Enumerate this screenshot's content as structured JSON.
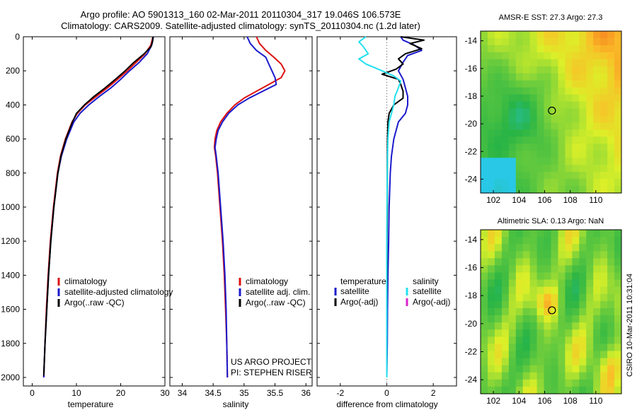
{
  "header": {
    "line1": "Argo profile: AO 5901313_160 02-Mar-2011 20110304_317 19.046S 106.573E",
    "line2": "Climatology: CARS2009. Satellite-adjusted climatology: synTS_20110304.nc (1.2d later)"
  },
  "colors": {
    "climatology": "#dd1111",
    "satellite": "#1a1acc",
    "argo": "#000000",
    "salinity_satellite": "#22e0ee",
    "salinity_argo": "#dd22cc",
    "zero_line": "#555555"
  },
  "chart_data": [
    {
      "type": "line",
      "xlabel": "temperature",
      "ylabel": "",
      "xlim": [
        -2,
        30
      ],
      "ylim": [
        2050,
        0
      ],
      "x_ticks": [
        0,
        10,
        20,
        30
      ],
      "y_ticks": [
        0,
        200,
        400,
        600,
        800,
        1000,
        1200,
        1400,
        1600,
        1800,
        2000
      ],
      "legend_items": [
        "climatology",
        "satellite-adjusted climatology",
        "Argo(..raw -QC)"
      ],
      "legend_position": "lower-right",
      "series": [
        {
          "name": "climatology",
          "color_key": "climatology",
          "depth": [
            0,
            50,
            100,
            150,
            200,
            250,
            300,
            350,
            400,
            450,
            500,
            600,
            700,
            800,
            1000,
            1200,
            1400,
            1600,
            1800,
            2000
          ],
          "values": [
            27.3,
            26.8,
            25.5,
            23.5,
            21.5,
            19.3,
            17.0,
            14.5,
            12.0,
            10.2,
            9.0,
            7.5,
            6.4,
            5.7,
            4.8,
            4.1,
            3.6,
            3.2,
            2.9,
            2.6
          ]
        },
        {
          "name": "satellite-adjusted climatology",
          "color_key": "satellite",
          "depth": [
            0,
            50,
            100,
            150,
            200,
            250,
            300,
            350,
            400,
            450,
            500,
            600,
            700,
            800,
            1000,
            1200,
            1400,
            1600,
            1800,
            2000
          ],
          "values": [
            27.4,
            27.0,
            26.0,
            24.2,
            22.0,
            20.0,
            17.8,
            15.2,
            12.8,
            10.8,
            9.4,
            7.8,
            6.6,
            5.8,
            4.9,
            4.2,
            3.7,
            3.3,
            2.9,
            2.6
          ]
        },
        {
          "name": "Argo(..raw -QC)",
          "color_key": "argo",
          "depth": [
            0,
            30,
            60,
            100,
            150,
            200,
            250,
            300,
            350,
            400,
            450,
            500,
            600,
            700,
            800,
            1000,
            1200,
            1400,
            1600,
            1800,
            1990
          ],
          "values": [
            27.3,
            27.2,
            26.8,
            25.3,
            23.0,
            21.0,
            18.8,
            16.5,
            14.0,
            11.8,
            10.0,
            9.1,
            7.6,
            6.5,
            5.8,
            4.9,
            4.2,
            3.7,
            3.3,
            2.9,
            2.6
          ]
        }
      ]
    },
    {
      "type": "line",
      "xlabel": "salinity",
      "xlim": [
        33.8,
        36.1
      ],
      "ylim": [
        2050,
        0
      ],
      "x_ticks": [
        34,
        34.5,
        35,
        35.5,
        36
      ],
      "legend_items": [
        "climatology",
        "satellite adj. clim.",
        "Argo(..raw -QC)"
      ],
      "legend_position": "lower-right",
      "annotation_line1": "US ARGO PROJECT",
      "annotation_line2": "PI: STEPHEN RISER",
      "series": [
        {
          "name": "climatology",
          "color_key": "climatology",
          "depth": [
            0,
            40,
            80,
            120,
            160,
            200,
            240,
            280,
            320,
            360,
            400,
            450,
            500,
            550,
            600,
            650,
            700,
            800,
            1000,
            1200,
            1400,
            1600,
            1800,
            2000
          ],
          "values": [
            35.2,
            35.25,
            35.35,
            35.48,
            35.6,
            35.66,
            35.6,
            35.4,
            35.2,
            35.0,
            34.85,
            34.72,
            34.62,
            34.56,
            34.53,
            34.52,
            34.54,
            34.57,
            34.61,
            34.65,
            34.68,
            34.7,
            34.72,
            34.73
          ]
        },
        {
          "name": "satellite adj. clim.",
          "color_key": "satellite",
          "depth": [
            0,
            40,
            80,
            120,
            160,
            200,
            240,
            280,
            320,
            360,
            400,
            450,
            500,
            550,
            600,
            650,
            700,
            800,
            1000,
            1200,
            1400,
            1600,
            1800,
            2000
          ],
          "values": [
            35.05,
            35.1,
            35.2,
            35.35,
            35.4,
            35.45,
            35.5,
            35.52,
            35.3,
            35.08,
            34.9,
            34.75,
            34.65,
            34.58,
            34.55,
            34.53,
            34.55,
            34.58,
            34.62,
            34.66,
            34.69,
            34.71,
            34.72,
            34.73
          ]
        }
      ]
    },
    {
      "type": "line",
      "xlabel": "difference from climatology",
      "xlim": [
        -3,
        3
      ],
      "ylim": [
        2050,
        0
      ],
      "x_ticks": [
        -2,
        0,
        2
      ],
      "legend_temperature_title": "temperature",
      "legend_salinity_title": "salinity",
      "legend_temperature_items": [
        "satellite",
        "Argo(-adj)"
      ],
      "legend_salinity_items": [
        "satellite",
        "Argo(-adj)"
      ],
      "legend_position": "lower-right",
      "series": [
        {
          "name": "temperature satellite",
          "color_key": "satellite",
          "depth": [
            0,
            20,
            50,
            80,
            110,
            150,
            200,
            250,
            300,
            350,
            400,
            450,
            500,
            600,
            700,
            800,
            1000,
            1200,
            1400,
            1600,
            1800,
            2000
          ],
          "values": [
            0.6,
            0.7,
            1.2,
            1.5,
            0.9,
            0.7,
            0.5,
            0.7,
            0.8,
            0.9,
            0.9,
            0.8,
            0.5,
            0.3,
            0.2,
            0.15,
            0.1,
            0.08,
            0.05,
            0.03,
            0.02,
            0.0
          ]
        },
        {
          "name": "temperature Argo(-adj)",
          "color_key": "argo",
          "depth": [
            0,
            20,
            40,
            70,
            100,
            130,
            160,
            190,
            220,
            250,
            280,
            320,
            360,
            400,
            450,
            500,
            600,
            700,
            800,
            1000,
            1200,
            1400,
            1600,
            1800,
            1990
          ],
          "values": [
            0.6,
            1.6,
            1.0,
            1.5,
            0.8,
            0.5,
            0.7,
            0.4,
            -0.2,
            0.5,
            0.6,
            0.7,
            0.7,
            0.3,
            0.1,
            0.05,
            0.03,
            0.02,
            0.02,
            0.02,
            0.01,
            0.01,
            0.0,
            0.0,
            0.0
          ]
        },
        {
          "name": "salinity satellite",
          "color_key": "salinity_satellite",
          "depth": [
            0,
            30,
            60,
            100,
            130,
            160,
            200,
            230,
            260,
            300,
            350,
            400,
            450,
            500,
            600,
            700,
            800,
            1000,
            1200,
            1400,
            1600,
            1800,
            2000
          ],
          "values": [
            -0.9,
            -1.2,
            -1.0,
            -0.8,
            -1.2,
            -0.9,
            -0.2,
            0.3,
            0.6,
            0.5,
            0.35,
            0.3,
            0.2,
            0.1,
            0.05,
            0.03,
            0.02,
            0.01,
            0.0,
            0.0,
            0.0,
            0.0,
            0.0
          ]
        }
      ]
    },
    {
      "type": "heatmap",
      "title": "AMSR-E SST: 27.3 Argo: 27.3",
      "x_ticks": [
        102,
        104,
        106,
        108,
        110
      ],
      "y_ticks": [
        -14,
        -16,
        -18,
        -20,
        -22,
        -24
      ],
      "xlim": [
        101,
        112
      ],
      "ylim": [
        -25,
        -13.3
      ],
      "marker": {
        "lon": 106.573,
        "lat": -19.046
      }
    },
    {
      "type": "heatmap",
      "title": "Altimetric SLA: 0.13 Argo: NaN",
      "x_ticks": [
        102,
        104,
        106,
        108,
        110
      ],
      "y_ticks": [
        -14,
        -16,
        -18,
        -20,
        -22,
        -24
      ],
      "xlim": [
        101,
        112
      ],
      "ylim": [
        -25,
        -13.3
      ],
      "marker": {
        "lon": 106.573,
        "lat": -19.046
      }
    }
  ],
  "footer": {
    "stamp": "CSIRO 10-Mar-2011 10:31:04"
  }
}
